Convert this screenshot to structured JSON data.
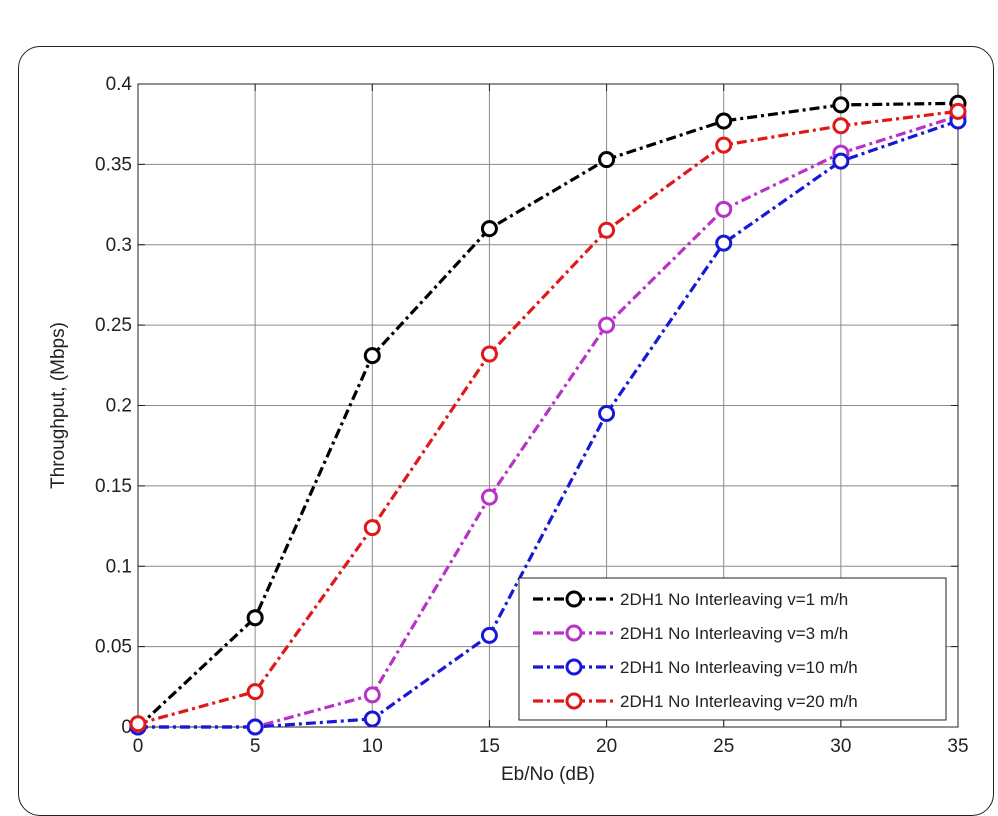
{
  "chart_data": {
    "type": "line",
    "title": "",
    "xlabel": "Eb/No (dB)",
    "ylabel": "Throughput, (Mbps)",
    "xlim": [
      0,
      35
    ],
    "ylim": [
      0,
      0.4
    ],
    "x_ticks": [
      0,
      5,
      10,
      15,
      20,
      25,
      30,
      35
    ],
    "y_ticks": [
      0,
      0.05,
      0.1,
      0.15,
      0.2,
      0.25,
      0.3,
      0.35,
      0.4
    ],
    "x_tick_labels": [
      "0",
      "5",
      "10",
      "15",
      "20",
      "25",
      "30",
      "35"
    ],
    "y_tick_labels": [
      "0",
      "0.05",
      "0.1",
      "0.15",
      "0.2",
      "0.25",
      "0.3",
      "0.35",
      "0.4"
    ],
    "grid": true,
    "legend_position": "bottom-right",
    "x": [
      0,
      5,
      10,
      15,
      20,
      25,
      30,
      35
    ],
    "series": [
      {
        "name": "2DH1 No Interleaving v=1 m/h",
        "color": "#000000",
        "values": [
          0.0,
          0.068,
          0.231,
          0.31,
          0.353,
          0.377,
          0.387,
          0.388
        ]
      },
      {
        "name": "2DH1 No Interleaving v=3 m/h",
        "color": "#b832c8",
        "values": [
          0.0,
          0.0,
          0.02,
          0.143,
          0.25,
          0.322,
          0.357,
          0.38
        ]
      },
      {
        "name": "2DH1 No Interleaving v=10 m/h",
        "color": "#1818d8",
        "values": [
          0.0,
          0.0,
          0.005,
          0.057,
          0.195,
          0.301,
          0.352,
          0.377
        ]
      },
      {
        "name": "2DH1 No Interleaving v=20 m/h",
        "color": "#e01818",
        "values": [
          0.002,
          0.022,
          0.124,
          0.232,
          0.309,
          0.362,
          0.374,
          0.383
        ]
      }
    ]
  }
}
